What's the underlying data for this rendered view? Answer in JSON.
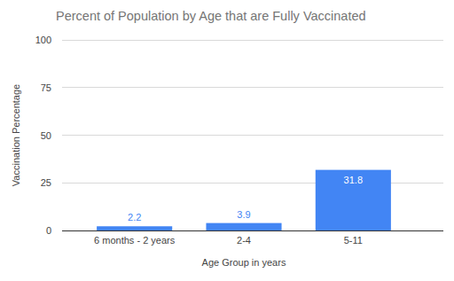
{
  "chart_data": {
    "type": "bar",
    "title": "Percent of Population by Age that are Fully Vaccinated",
    "x_label": "Age Group in years",
    "y_label": "Vaccination Percentage",
    "categories": [
      "6 months - 2 years",
      "2-4",
      "5-11"
    ],
    "values": [
      2.2,
      3.9,
      31.8
    ],
    "color": "#4285f4",
    "ylim": [
      0,
      100
    ],
    "yticks": [
      0,
      25,
      50,
      75,
      100
    ],
    "grid": true,
    "data_labels": true
  }
}
